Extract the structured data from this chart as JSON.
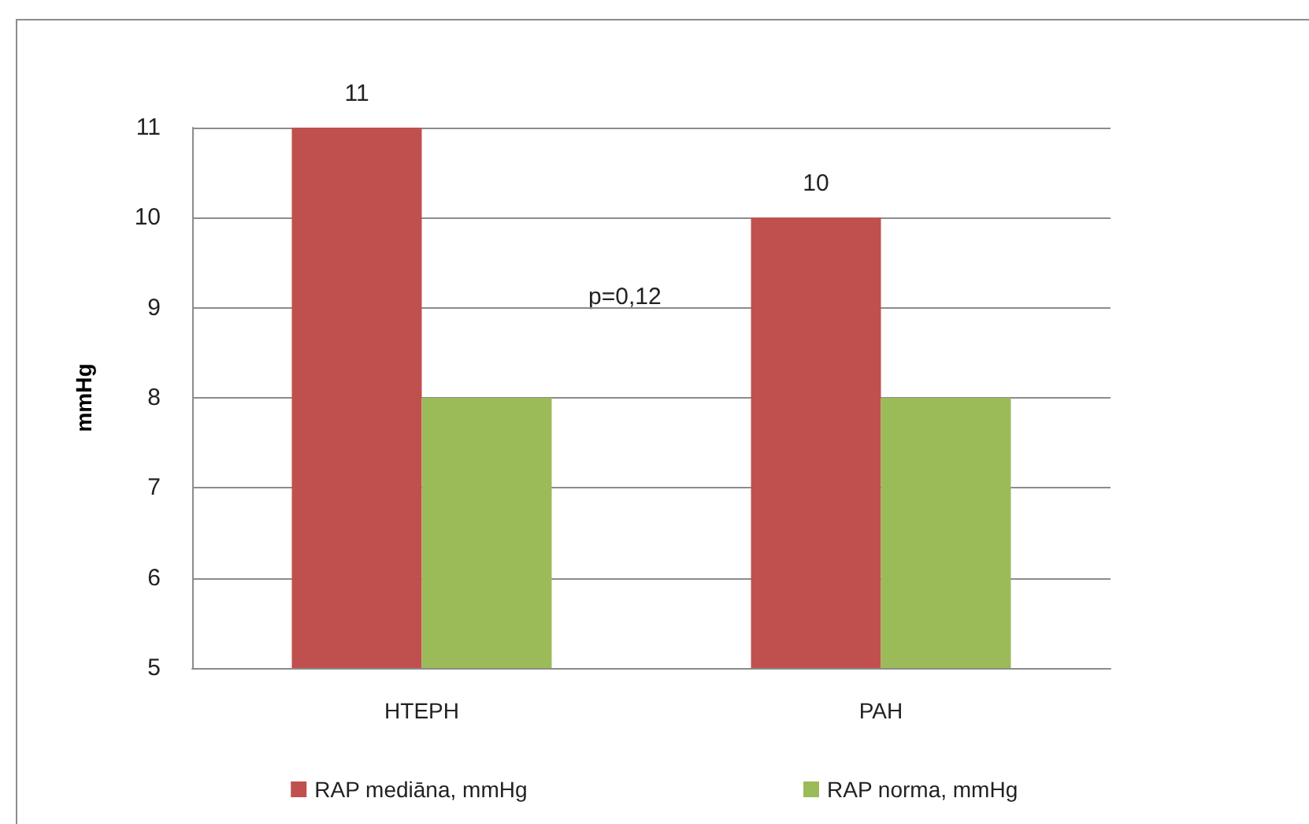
{
  "chart_data": {
    "type": "bar",
    "ylabel": "mmHg",
    "categories": [
      "HTEPH",
      "PAH"
    ],
    "series": [
      {
        "name": "RAP mediāna, mmHg",
        "color": "#c0504d",
        "values": [
          11,
          10
        ],
        "value_labels": [
          "11",
          "10"
        ]
      },
      {
        "name": "RAP norma, mmHg",
        "color": "#9bbb59",
        "values": [
          8,
          8
        ]
      }
    ],
    "ylim": [
      5,
      11
    ],
    "yticks": [
      5,
      6,
      7,
      8,
      9,
      10,
      11
    ],
    "grid": "y",
    "legend": "bottom",
    "annotations": [
      "p=0,12"
    ]
  }
}
